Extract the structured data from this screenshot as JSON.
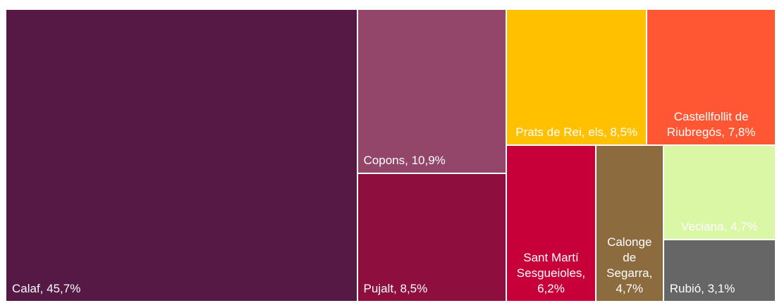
{
  "chart_data": {
    "type": "treemap",
    "values": [
      45.7,
      10.9,
      8.5,
      8.5,
      7.8,
      6.2,
      4.7,
      4.7,
      3.1
    ],
    "value_labels": [
      "Calaf, 45,7%",
      "Copons, 10,9%",
      "Pujalt, 8,5%",
      "Prats de Rei, els, 8,5%",
      "Castellfollit de Riubregós, 7,8%",
      "Sant Martí Sesgueioles, 6,2%",
      "Calonge de Segarra, 4,7%",
      "Veciana, 4,7%",
      "Rubió, 3,1%"
    ],
    "colors": [
      "#561845",
      "#93456a",
      "#8e0e3e",
      "#ffc000",
      "#ff5733",
      "#c70039",
      "#8c6b3f",
      "#daf7a6",
      "#666666"
    ]
  }
}
